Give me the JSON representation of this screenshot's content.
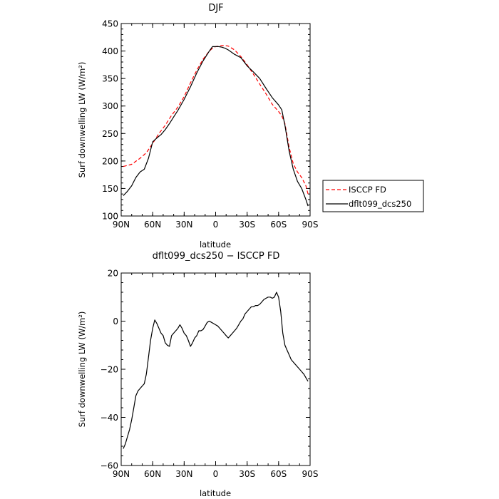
{
  "chart_data": [
    {
      "type": "line",
      "title": "DJF",
      "xlabel": "latitude",
      "ylabel": "Surf downwelling LW (W/m²)",
      "ylim": [
        100,
        450
      ],
      "yticks": [
        "100",
        "150",
        "200",
        "250",
        "300",
        "350",
        "400",
        "450"
      ],
      "xlim": [
        -90,
        90
      ],
      "xticks": [
        "90N",
        "60N",
        "30N",
        "0",
        "30S",
        "60S",
        "90S"
      ],
      "legend_position": "right",
      "series": [
        {
          "name": "ISCCP FD",
          "color": "#ff0000",
          "style": "dashed",
          "x": [
            -88,
            -80,
            -72,
            -66,
            -60,
            -54,
            -48,
            -42,
            -36,
            -30,
            -24,
            -18,
            -12,
            -6,
            -3,
            0,
            3,
            6,
            9,
            12,
            18,
            24,
            30,
            36,
            42,
            48,
            54,
            60,
            63,
            66,
            70,
            74,
            78,
            82,
            86,
            88
          ],
          "y": [
            190,
            194,
            205,
            215,
            232,
            250,
            265,
            283,
            298,
            317,
            342,
            365,
            385,
            400,
            405,
            408,
            409,
            410,
            410,
            409,
            402,
            390,
            375,
            358,
            340,
            322,
            303,
            290,
            282,
            268,
            225,
            195,
            180,
            170,
            155,
            140
          ]
        },
        {
          "name": "dflt099_dcs250",
          "color": "#000000",
          "style": "solid",
          "x": [
            -88,
            -84,
            -80,
            -76,
            -72,
            -68,
            -64,
            -60,
            -56,
            -52,
            -48,
            -44,
            -40,
            -36,
            -30,
            -24,
            -18,
            -12,
            -6,
            -3,
            0,
            3,
            6,
            9,
            12,
            18,
            24,
            30,
            36,
            42,
            48,
            54,
            60,
            63,
            66,
            70,
            74,
            78,
            82,
            86,
            88
          ],
          "y": [
            137,
            145,
            155,
            170,
            180,
            185,
            205,
            235,
            242,
            248,
            257,
            268,
            280,
            292,
            312,
            335,
            360,
            382,
            400,
            408,
            408,
            408,
            407,
            405,
            402,
            394,
            388,
            373,
            362,
            350,
            332,
            315,
            302,
            293,
            265,
            218,
            185,
            163,
            150,
            130,
            118
          ]
        }
      ]
    },
    {
      "type": "line",
      "title": "dflt099_dcs250 − ISCCP FD",
      "xlabel": "latitude",
      "ylabel": "Surf downwelling LW (W/m²)",
      "ylim": [
        -60,
        20
      ],
      "yticks": [
        "20",
        "0",
        "−20",
        "−40",
        "−60"
      ],
      "xlim": [
        -90,
        90
      ],
      "xticks": [
        "90N",
        "60N",
        "30N",
        "0",
        "30S",
        "60S",
        "90S"
      ],
      "series": [
        {
          "color": "#000000",
          "style": "solid",
          "x": [
            -88,
            -86,
            -84,
            -82,
            -80,
            -78,
            -76,
            -74,
            -72,
            -70,
            -68,
            -66,
            -64,
            -62,
            -60,
            -58,
            -56,
            -54,
            -52,
            -50,
            -48,
            -46,
            -44,
            -42,
            -40,
            -38,
            -36,
            -34,
            -32,
            -30,
            -28,
            -26,
            -24,
            -22,
            -20,
            -18,
            -16,
            -14,
            -12,
            -10,
            -8,
            -6,
            -4,
            -2,
            0,
            2,
            4,
            6,
            8,
            10,
            12,
            14,
            16,
            18,
            20,
            22,
            24,
            26,
            28,
            30,
            32,
            34,
            36,
            38,
            40,
            42,
            44,
            46,
            48,
            50,
            52,
            54,
            56,
            58,
            60,
            62,
            64,
            66,
            68,
            70,
            72,
            74,
            76,
            78,
            80,
            82,
            84,
            86,
            88
          ],
          "y": [
            -53,
            -51,
            -48,
            -45,
            -41,
            -36,
            -31,
            -29,
            -28,
            -27,
            -26,
            -22,
            -15,
            -8,
            -3,
            0.5,
            -1,
            -3,
            -5,
            -6,
            -9,
            -10,
            -10.5,
            -6,
            -5,
            -4,
            -3,
            -1.5,
            -3,
            -5,
            -6,
            -8,
            -10.5,
            -9,
            -7,
            -6,
            -4,
            -4,
            -3.5,
            -2,
            -0.5,
            0,
            -0.5,
            -1,
            -1.5,
            -2,
            -3,
            -4,
            -5,
            -6,
            -7,
            -6,
            -5,
            -4,
            -3,
            -1.5,
            0,
            1,
            3,
            4,
            5,
            6,
            6,
            6.5,
            6.5,
            7,
            8,
            9,
            9.5,
            10,
            10,
            9.5,
            10,
            12,
            10,
            4,
            -5,
            -10,
            -12,
            -14,
            -16,
            -17,
            -18,
            -19,
            -20,
            -21,
            -22,
            -23.5,
            -25
          ]
        }
      ]
    }
  ]
}
